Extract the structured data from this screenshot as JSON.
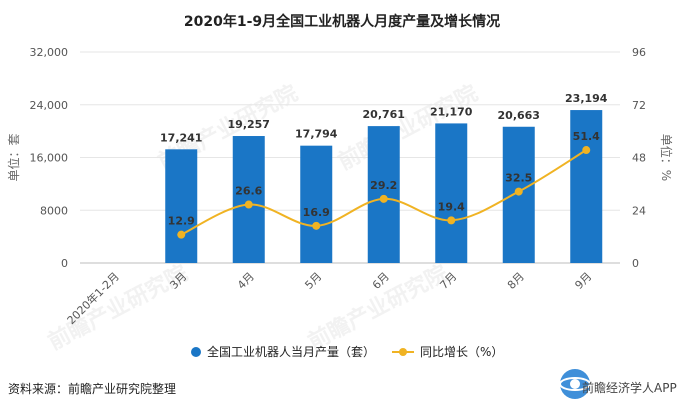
{
  "title": "2020年1-9月全国工业机器人月度产量及增长情况",
  "footer": "资料来源：前瞻产业研究院整理",
  "brand": {
    "name": "前瞻经济学人APP",
    "icon": "logo-icon"
  },
  "watermark": "前瞻产业研究院",
  "legend": {
    "bar": "全国工业机器人当月产量（套）",
    "line": "同比增长（%）"
  },
  "colors": {
    "bar": "#1a76c6",
    "line": "#f0b323",
    "grid": "#e6e6e6"
  },
  "chart_data": {
    "type": "bar",
    "title": "2020年1-9月全国工业机器人月度产量及增长情况",
    "categories": [
      "2020年1-2月",
      "3月",
      "4月",
      "5月",
      "6月",
      "7月",
      "8月",
      "9月"
    ],
    "series": [
      {
        "name": "全国工业机器人当月产量（套）",
        "type": "bar",
        "axis": "left",
        "values": [
          null,
          17241,
          19257,
          17794,
          20761,
          21170,
          20663,
          23194
        ],
        "labels": [
          "",
          "17,241",
          "19,257",
          "17,794",
          "20,761",
          "21,170",
          "20,663",
          "23,194"
        ]
      },
      {
        "name": "同比增长（%）",
        "type": "line",
        "axis": "right",
        "values": [
          null,
          12.9,
          26.6,
          16.9,
          29.2,
          19.4,
          32.5,
          51.4
        ],
        "labels": [
          "",
          "12.9",
          "26.6",
          "16.9",
          "29.2",
          "19.4",
          "32.5",
          "51.4"
        ]
      }
    ],
    "ylabel": "单位：套",
    "ylabel2": "单位：%",
    "ylim": [
      0,
      32000
    ],
    "ylim2": [
      0,
      96
    ],
    "yticks": [
      "0",
      "8000",
      "16,000",
      "24,000",
      "32,000"
    ],
    "yticks_values": [
      0,
      8000,
      16000,
      24000,
      32000
    ],
    "y2ticks": [
      "0",
      "24",
      "48",
      "72",
      "96"
    ],
    "y2ticks_values": [
      0,
      24,
      48,
      72,
      96
    ],
    "grid": true,
    "legend_position": "bottom"
  }
}
